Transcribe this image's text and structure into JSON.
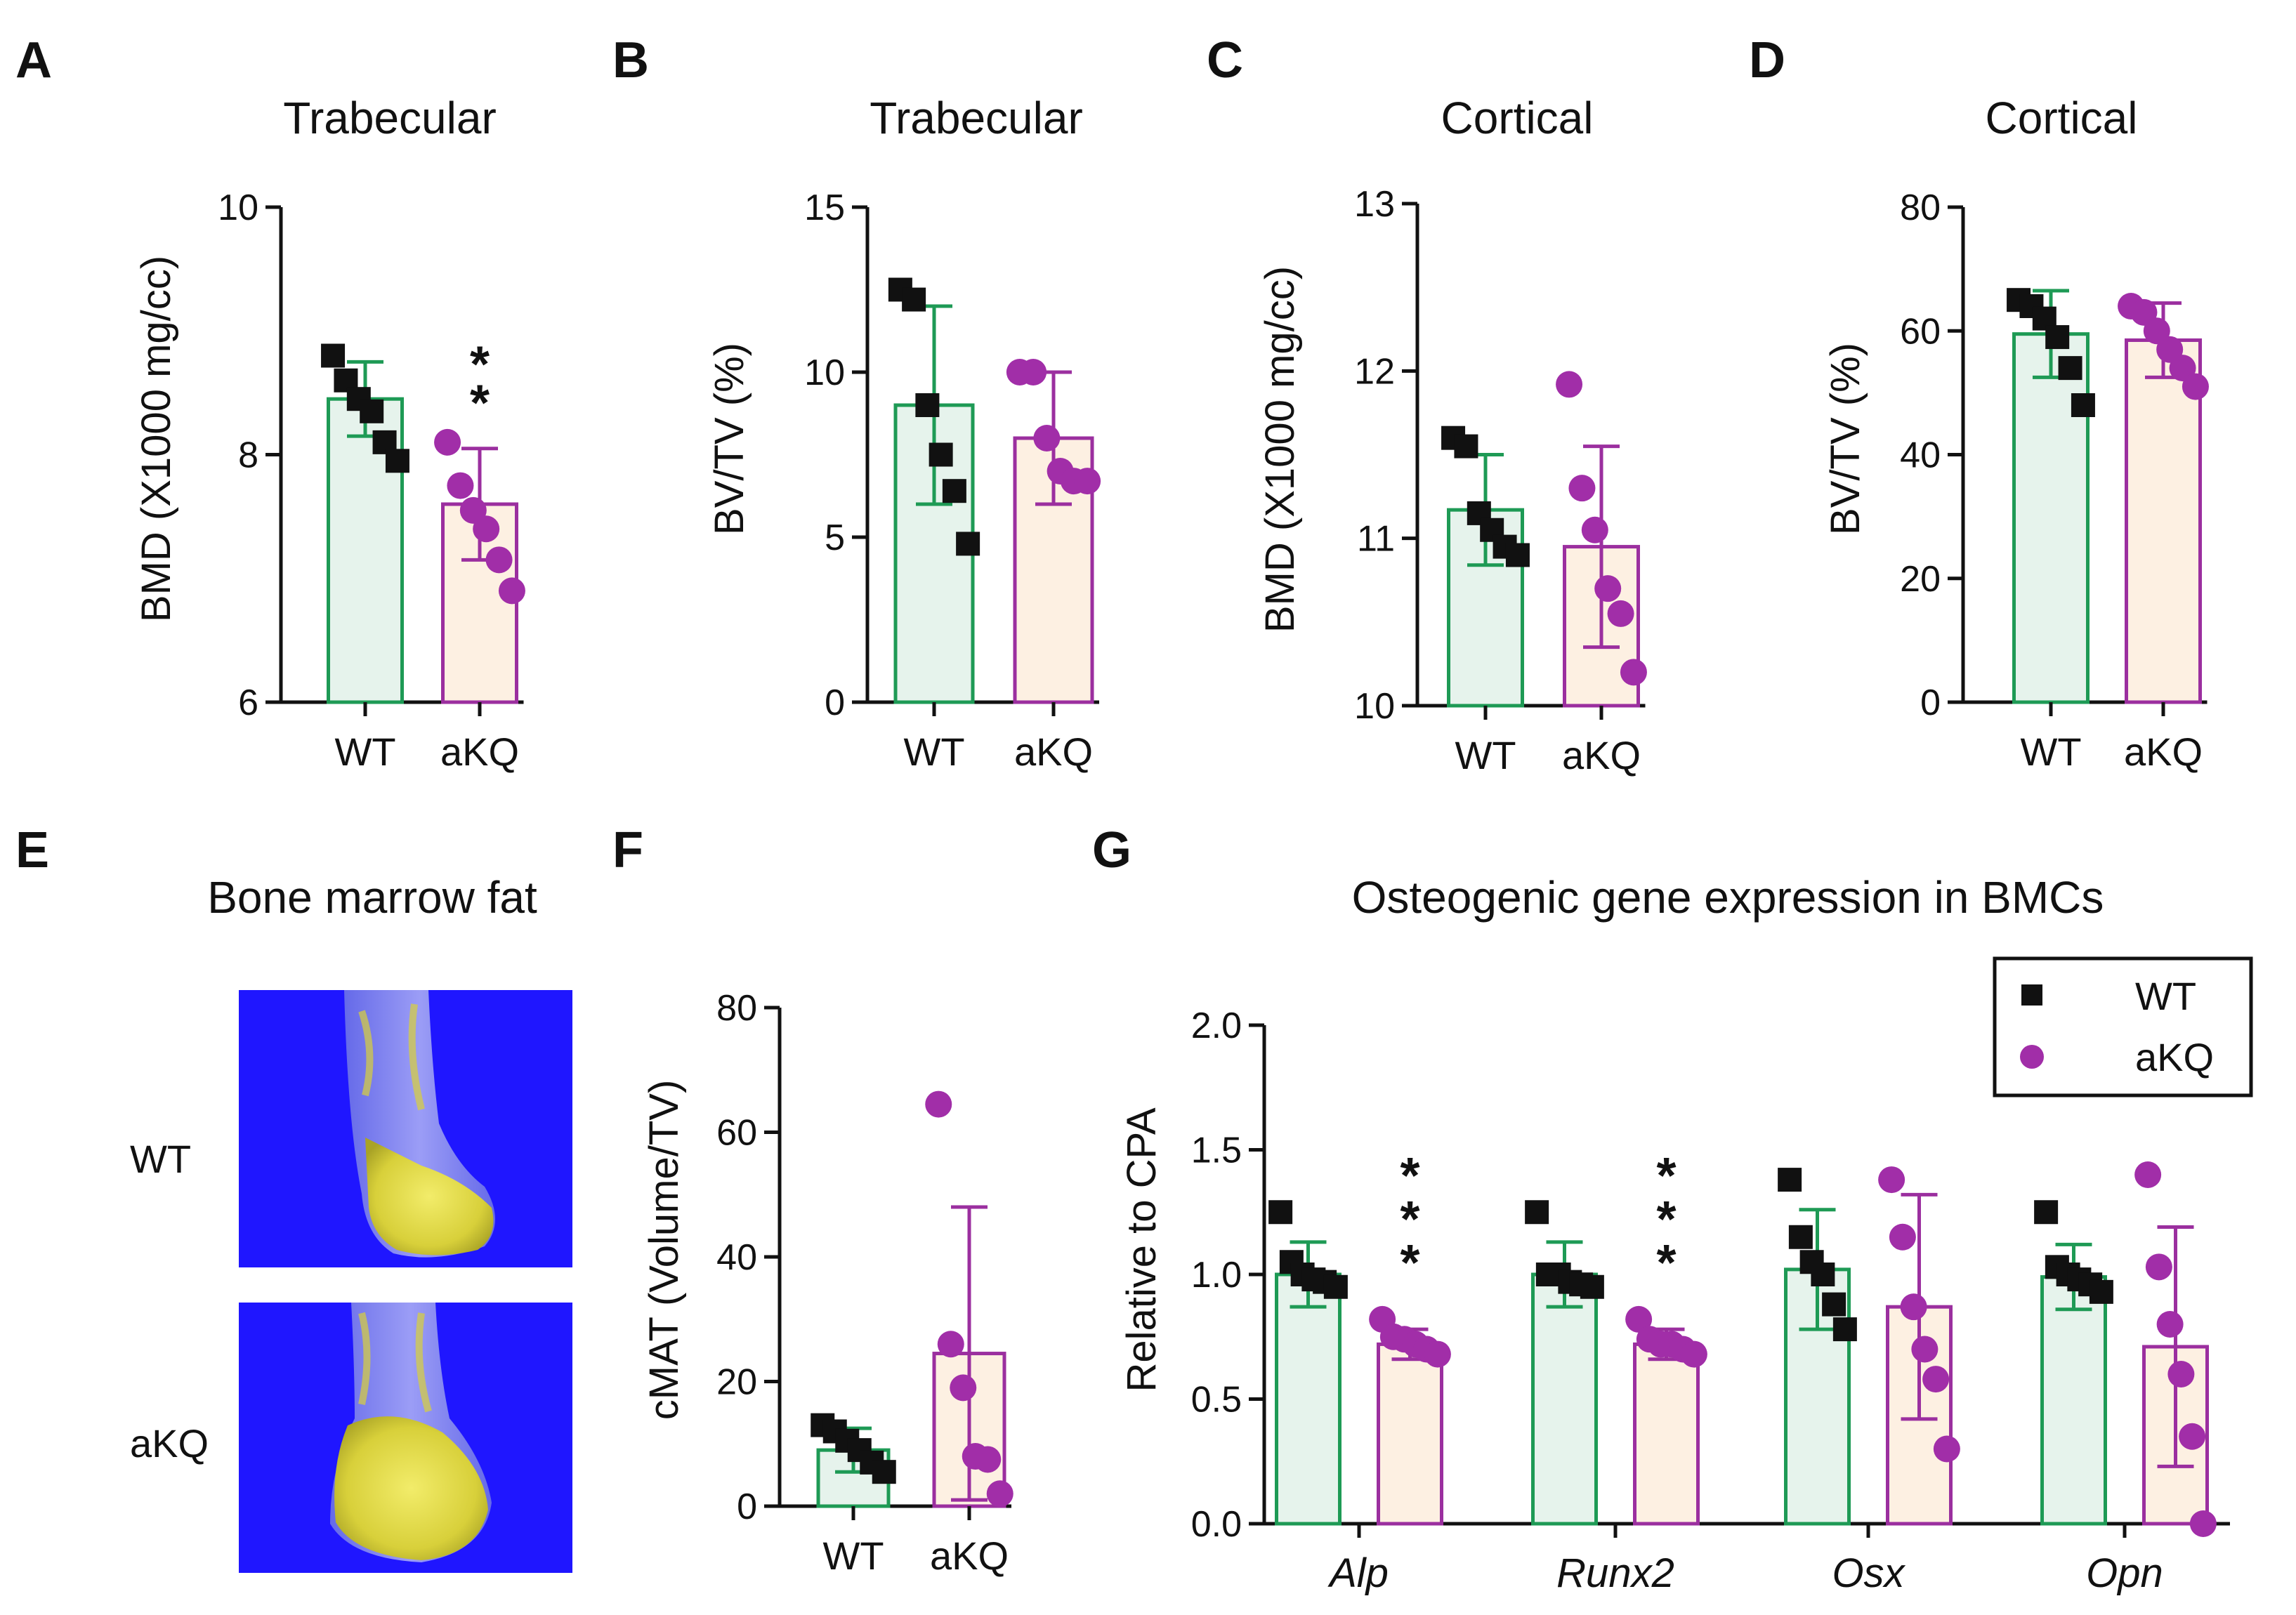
{
  "colors": {
    "wt_stroke": "#1e9a55",
    "wt_fill": "#e6f3ec",
    "akq_stroke": "#9b2f9f",
    "akq_fill": "#fdf0e2",
    "wt_point": "#111111",
    "akq_point": "#a12ea8",
    "bone_bg": "#1f16ff",
    "bone_shaft": "#8a8ef2",
    "fat": "#e6e04a"
  },
  "panel_e": {
    "letter": "E",
    "title": "Bone marrow fat",
    "row_labels": [
      "WT",
      "aKQ"
    ]
  },
  "chart_data": [
    {
      "panel": "A",
      "type": "bar",
      "title": "Trabecular",
      "ylabel": "BMD (X1000 mg/cc)",
      "ylim": [
        6,
        10
      ],
      "yticks": [
        6,
        8,
        10
      ],
      "categories": [
        "WT",
        "aKQ"
      ],
      "means": [
        8.45,
        7.6
      ],
      "sd": [
        0.3,
        0.45
      ],
      "points": [
        [
          8.8,
          8.6,
          8.45,
          8.35,
          8.1,
          7.95
        ],
        [
          8.1,
          7.75,
          7.55,
          7.4,
          7.15,
          6.9
        ]
      ],
      "significance": [
        "",
        "**"
      ]
    },
    {
      "panel": "B",
      "type": "bar",
      "title": "Trabecular",
      "ylabel": "BV/TV (%)",
      "ylim": [
        0,
        15
      ],
      "yticks": [
        0,
        5,
        10,
        15
      ],
      "categories": [
        "WT",
        "aKQ"
      ],
      "means": [
        9.0,
        8.0
      ],
      "sd": [
        3.0,
        2.0
      ],
      "points": [
        [
          12.5,
          12.2,
          9.0,
          7.5,
          6.4,
          4.8
        ],
        [
          10.0,
          10.0,
          8.0,
          7.0,
          6.7,
          6.7
        ]
      ],
      "significance": [
        "",
        ""
      ]
    },
    {
      "panel": "C",
      "type": "bar",
      "title": "Cortical",
      "ylabel": "BMD (X1000 mg/cc)",
      "ylim": [
        10,
        13
      ],
      "yticks": [
        10,
        11,
        12,
        13
      ],
      "categories": [
        "WT",
        "aKQ"
      ],
      "means": [
        11.17,
        10.95
      ],
      "sd": [
        0.33,
        0.6
      ],
      "points": [
        [
          11.6,
          11.55,
          11.15,
          11.05,
          10.95,
          10.9
        ],
        [
          11.92,
          11.3,
          11.05,
          10.7,
          10.55,
          10.2
        ]
      ],
      "significance": [
        "",
        ""
      ]
    },
    {
      "panel": "D",
      "type": "bar",
      "title": "Cortical",
      "ylabel": "BV/TV (%)",
      "ylim": [
        0,
        80
      ],
      "yticks": [
        0,
        20,
        40,
        60,
        80
      ],
      "categories": [
        "WT",
        "aKQ"
      ],
      "means": [
        59.5,
        58.5
      ],
      "sd": [
        7.0,
        6.0
      ],
      "points": [
        [
          65.0,
          64.0,
          62.0,
          59.0,
          54.0,
          48.0
        ],
        [
          64.0,
          63.0,
          60.0,
          57.0,
          54.0,
          51.0
        ]
      ],
      "significance": [
        "",
        ""
      ]
    },
    {
      "panel": "F",
      "type": "bar",
      "title": "",
      "ylabel": "cMAT (Volume/TV)",
      "ylim": [
        0,
        80
      ],
      "yticks": [
        0,
        20,
        40,
        60,
        80
      ],
      "categories": [
        "WT",
        "aKQ"
      ],
      "means": [
        9.0,
        24.5
      ],
      "sd": [
        3.5,
        23.5
      ],
      "points": [
        [
          13.0,
          12.0,
          10.5,
          9.0,
          7.0,
          5.5
        ],
        [
          64.5,
          26.0,
          19.0,
          8.0,
          7.5,
          2.0
        ]
      ],
      "significance": [
        "",
        ""
      ]
    },
    {
      "panel": "G",
      "type": "bar",
      "title": "Osteogenic gene expression in BMCs",
      "ylabel": "Relative to CPA",
      "ylim": [
        0.0,
        2.0
      ],
      "yticks": [
        "0.0",
        "0.5",
        "1.0",
        "1.5",
        "2.0"
      ],
      "categories": [
        "Alp",
        "Runx2",
        "Osx",
        "Opn"
      ],
      "legend": [
        "WT",
        "aKQ"
      ],
      "legend_position": "top-right",
      "series": [
        {
          "name": "WT",
          "means": [
            1.0,
            1.0,
            1.02,
            0.99
          ],
          "sd": [
            0.13,
            0.13,
            0.24,
            0.13
          ],
          "points": [
            [
              1.25,
              1.05,
              1.0,
              0.98,
              0.97,
              0.95
            ],
            [
              1.25,
              1.0,
              1.0,
              0.97,
              0.96,
              0.95
            ],
            [
              1.38,
              1.15,
              1.05,
              1.0,
              0.88,
              0.78
            ],
            [
              1.25,
              1.03,
              1.0,
              0.98,
              0.96,
              0.93
            ]
          ]
        },
        {
          "name": "aKQ",
          "means": [
            0.72,
            0.72,
            0.87,
            0.71
          ],
          "sd": [
            0.06,
            0.06,
            0.45,
            0.48
          ],
          "points": [
            [
              0.82,
              0.75,
              0.74,
              0.72,
              0.7,
              0.68
            ],
            [
              0.82,
              0.74,
              0.72,
              0.72,
              0.7,
              0.68
            ],
            [
              1.38,
              1.15,
              0.87,
              0.7,
              0.58,
              0.3
            ],
            [
              1.4,
              1.03,
              0.8,
              0.6,
              0.35,
              0.0
            ]
          ]
        }
      ],
      "significance": [
        "***",
        "***",
        "",
        ""
      ]
    }
  ]
}
